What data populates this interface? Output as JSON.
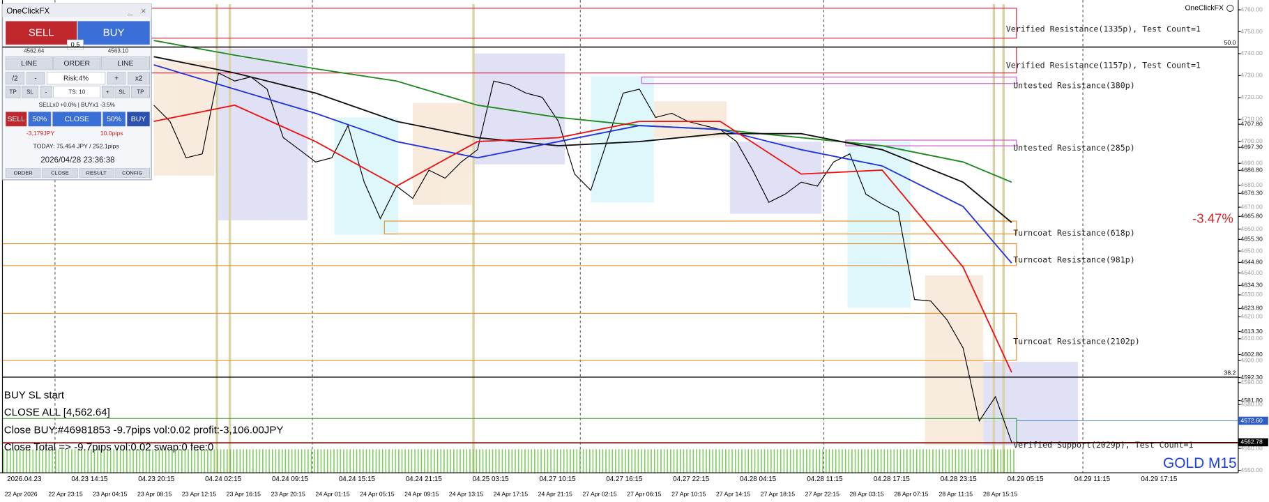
{
  "brand": "OneClickFX",
  "change": "-3.47%",
  "symbol": "GOLD M15",
  "panel": {
    "title": "OneClickFX",
    "sell": "SELL",
    "buy": "BUY",
    "lot": "0.5",
    "bid": "4562.64",
    "ask": "4563.10",
    "row1": [
      "LINE",
      "ORDER",
      "LINE"
    ],
    "row2": [
      "/2",
      "-",
      "Risk:4%",
      "+",
      "x2"
    ],
    "row3": [
      "TP",
      "SL",
      "-",
      "TS: 10",
      "+",
      "SL",
      "TP"
    ],
    "positions": "SELLx0 +0.0% | BUYx1 -3.5%",
    "row4": [
      "SELL",
      "50%",
      "CLOSE",
      "50%",
      "BUY"
    ],
    "profit": "-3,179JPY",
    "pips": "10.0pips",
    "today": "TODAY: 75,454 JPY / 252.1pips",
    "clock": "2026/04/28  23:36:38",
    "footer": [
      "ORDER",
      "CLOSE",
      "RESULT",
      "CONFIG"
    ]
  },
  "log": [
    "BUY SL start",
    "CLOSE ALL [4,562.64]",
    "Close BUY:#46981853 -9.7pips vol:0.02 profit:-3,106.00JPY",
    "Close Total => -9.7pips vol:0.02 swap:0 fee:0"
  ],
  "zones": [
    "Verified Resistance(1335p), Test Count=1",
    "Verified Resistance(1157p), Test Count=1",
    "Untested Resistance(380p)",
    "Untested Resistance(285p)",
    "Turncoat Resistance(618p)",
    "Turncoat Resistance(981p)",
    "Turncoat Resistance(2102p)",
    "Verified Support(2029p), Test Count=1"
  ],
  "chart_data": {
    "type": "line",
    "ylim": [
      4548.9,
      4764.4
    ],
    "yticks": [
      {
        "value": 4760,
        "label": "4760.00"
      },
      {
        "value": 4750,
        "label": "4750.00"
      },
      {
        "value": 4740,
        "label": "4740.00"
      },
      {
        "value": 4730,
        "label": "4730.00"
      },
      {
        "value": 4720,
        "label": "4720.00"
      },
      {
        "value": 4710,
        "label": "4710.00"
      },
      {
        "value": 4707.8,
        "label": "4707.80"
      },
      {
        "value": 4700,
        "label": "4700.00"
      },
      {
        "value": 4697.3,
        "label": "4697.30"
      },
      {
        "value": 4690,
        "label": "4690.00"
      },
      {
        "value": 4686.8,
        "label": "4686.80"
      },
      {
        "value": 4680,
        "label": "4680.00"
      },
      {
        "value": 4676.3,
        "label": "4676.30"
      },
      {
        "value": 4670,
        "label": "4670.00"
      },
      {
        "value": 4665.8,
        "label": "4665.80"
      },
      {
        "value": 4660,
        "label": "4660.00"
      },
      {
        "value": 4655.3,
        "label": "4655.30"
      },
      {
        "value": 4650,
        "label": "4650.00"
      },
      {
        "value": 4644.8,
        "label": "4644.80"
      },
      {
        "value": 4640,
        "label": "4640.00"
      },
      {
        "value": 4634.3,
        "label": "4634.30"
      },
      {
        "value": 4630,
        "label": "4630.00"
      },
      {
        "value": 4623.8,
        "label": "4623.80"
      },
      {
        "value": 4620,
        "label": "4620.00"
      },
      {
        "value": 4613.3,
        "label": "4613.30"
      },
      {
        "value": 4610,
        "label": "4610.00"
      },
      {
        "value": 4602.8,
        "label": "4602.80"
      },
      {
        "value": 4600,
        "label": "4600.00"
      },
      {
        "value": 4592.3,
        "label": "4592.30"
      },
      {
        "value": 4590,
        "label": "4590.00"
      },
      {
        "value": 4581.8,
        "label": "4581.80"
      },
      {
        "value": 4580,
        "label": "4580.00"
      },
      {
        "value": 4560,
        "label": "4560.00"
      },
      {
        "value": 4550,
        "label": "4550.00"
      }
    ],
    "price_tags": [
      {
        "value": 4572.6,
        "label": "4572.60",
        "color": "#2f5fc4"
      },
      {
        "value": 4562.78,
        "label": "4562.78",
        "color": "#000000"
      }
    ],
    "fib_levels": [
      {
        "label": "50.0",
        "price": 4743
      },
      {
        "label": "38.2",
        "price": 4592.5
      }
    ],
    "series": [
      {
        "color": "#000000",
        "values": [
          4716.5,
          4709.1,
          4692.5,
          4694.3,
          4731.2,
          4727.5,
          4729.4,
          4723.8,
          4701.7,
          4696.2,
          4690.6,
          4692.5,
          4707.2,
          4681.4,
          4664.8,
          4679.6,
          4674,
          4686.9,
          4683.2,
          4690.6,
          4696.2,
          4727.5,
          4725.7,
          4722,
          4720.1,
          4709.1,
          4685.1,
          4677.7,
          4699.9,
          4722,
          4723.8,
          4710.9,
          4712.8,
          4709.1,
          4707.2,
          4705.4,
          4699.9,
          4686.9,
          4672.2,
          4675.9,
          4681.4,
          4679.6,
          4690.6,
          4694.3,
          4675.9,
          4671.4,
          4667.7,
          4627.9,
          4627.2,
          4618.7,
          4605.8,
          4572.5,
          4583.6,
          4562.8
        ]
      },
      {
        "color": "#1f8a1f",
        "x": [
          0,
          5,
          10,
          15,
          20,
          25,
          30,
          35,
          40,
          45,
          50,
          53
        ],
        "values": [
          4746,
          4739.3,
          4733.1,
          4727.5,
          4716.5,
          4710.9,
          4707.2,
          4705.4,
          4701.7,
          4698,
          4690.6,
          4681.4
        ]
      },
      {
        "color": "#111111",
        "x": [
          0,
          5,
          10,
          15,
          20,
          25,
          30,
          35,
          40,
          45,
          50,
          53
        ],
        "values": [
          4738.6,
          4731.2,
          4722,
          4709.1,
          4701.7,
          4698,
          4699.9,
          4703.5,
          4703.5,
          4696.2,
          4681.4,
          4663
        ]
      },
      {
        "color": "#2233dd",
        "x": [
          0,
          5,
          10,
          15,
          20,
          25,
          30,
          35,
          40,
          45,
          50,
          53
        ],
        "values": [
          4734.9,
          4723.8,
          4712.8,
          4699.9,
          4692.5,
          4699.9,
          4707.2,
          4705.4,
          4696.2,
          4688.8,
          4670.3,
          4644.5
        ]
      },
      {
        "color": "#ee1111",
        "x": [
          0,
          5,
          10,
          15,
          20,
          25,
          30,
          35,
          40,
          45,
          50,
          53
        ],
        "values": [
          4709.1,
          4716.5,
          4699.9,
          4679.6,
          4699.9,
          4701.7,
          4709.1,
          4709.1,
          4685.1,
          4686.9,
          4642.7,
          4594.7
        ]
      }
    ],
    "time_labels": [
      "2026.04.23",
      "04.23 14:15",
      "04.23 20:15",
      "04.24 02:15",
      "04.24 09:15",
      "04.24 15:15",
      "04.24 21:15",
      "04.25 03:15",
      "04.27 10:15",
      "04.27 16:15",
      "04.27 22:15",
      "04.28 04:15",
      "04.28 11:15",
      "04.28 17:15",
      "04.28 23:15",
      "04.29 05:15",
      "04.29 11:15",
      "04.29 17:15"
    ],
    "date_labels": [
      "22 Apr 2026",
      "22 Apr 23:15",
      "23 Apr 04:15",
      "23 Apr 08:15",
      "23 Apr 12:15",
      "23 Apr 16:15",
      "23 Apr 20:15",
      "24 Apr 01:15",
      "24 Apr 05:15",
      "24 Apr 09:15",
      "24 Apr 13:15",
      "24 Apr 17:15",
      "24 Apr 21:15",
      "27 Apr 02:15",
      "27 Apr 06:15",
      "27 Apr 10:15",
      "27 Apr 14:15",
      "27 Apr 18:15",
      "27 Apr 22:15",
      "28 Apr 03:15",
      "28 Apr 07:15",
      "28 Apr 11:15",
      "28 Apr 15:15"
    ]
  }
}
